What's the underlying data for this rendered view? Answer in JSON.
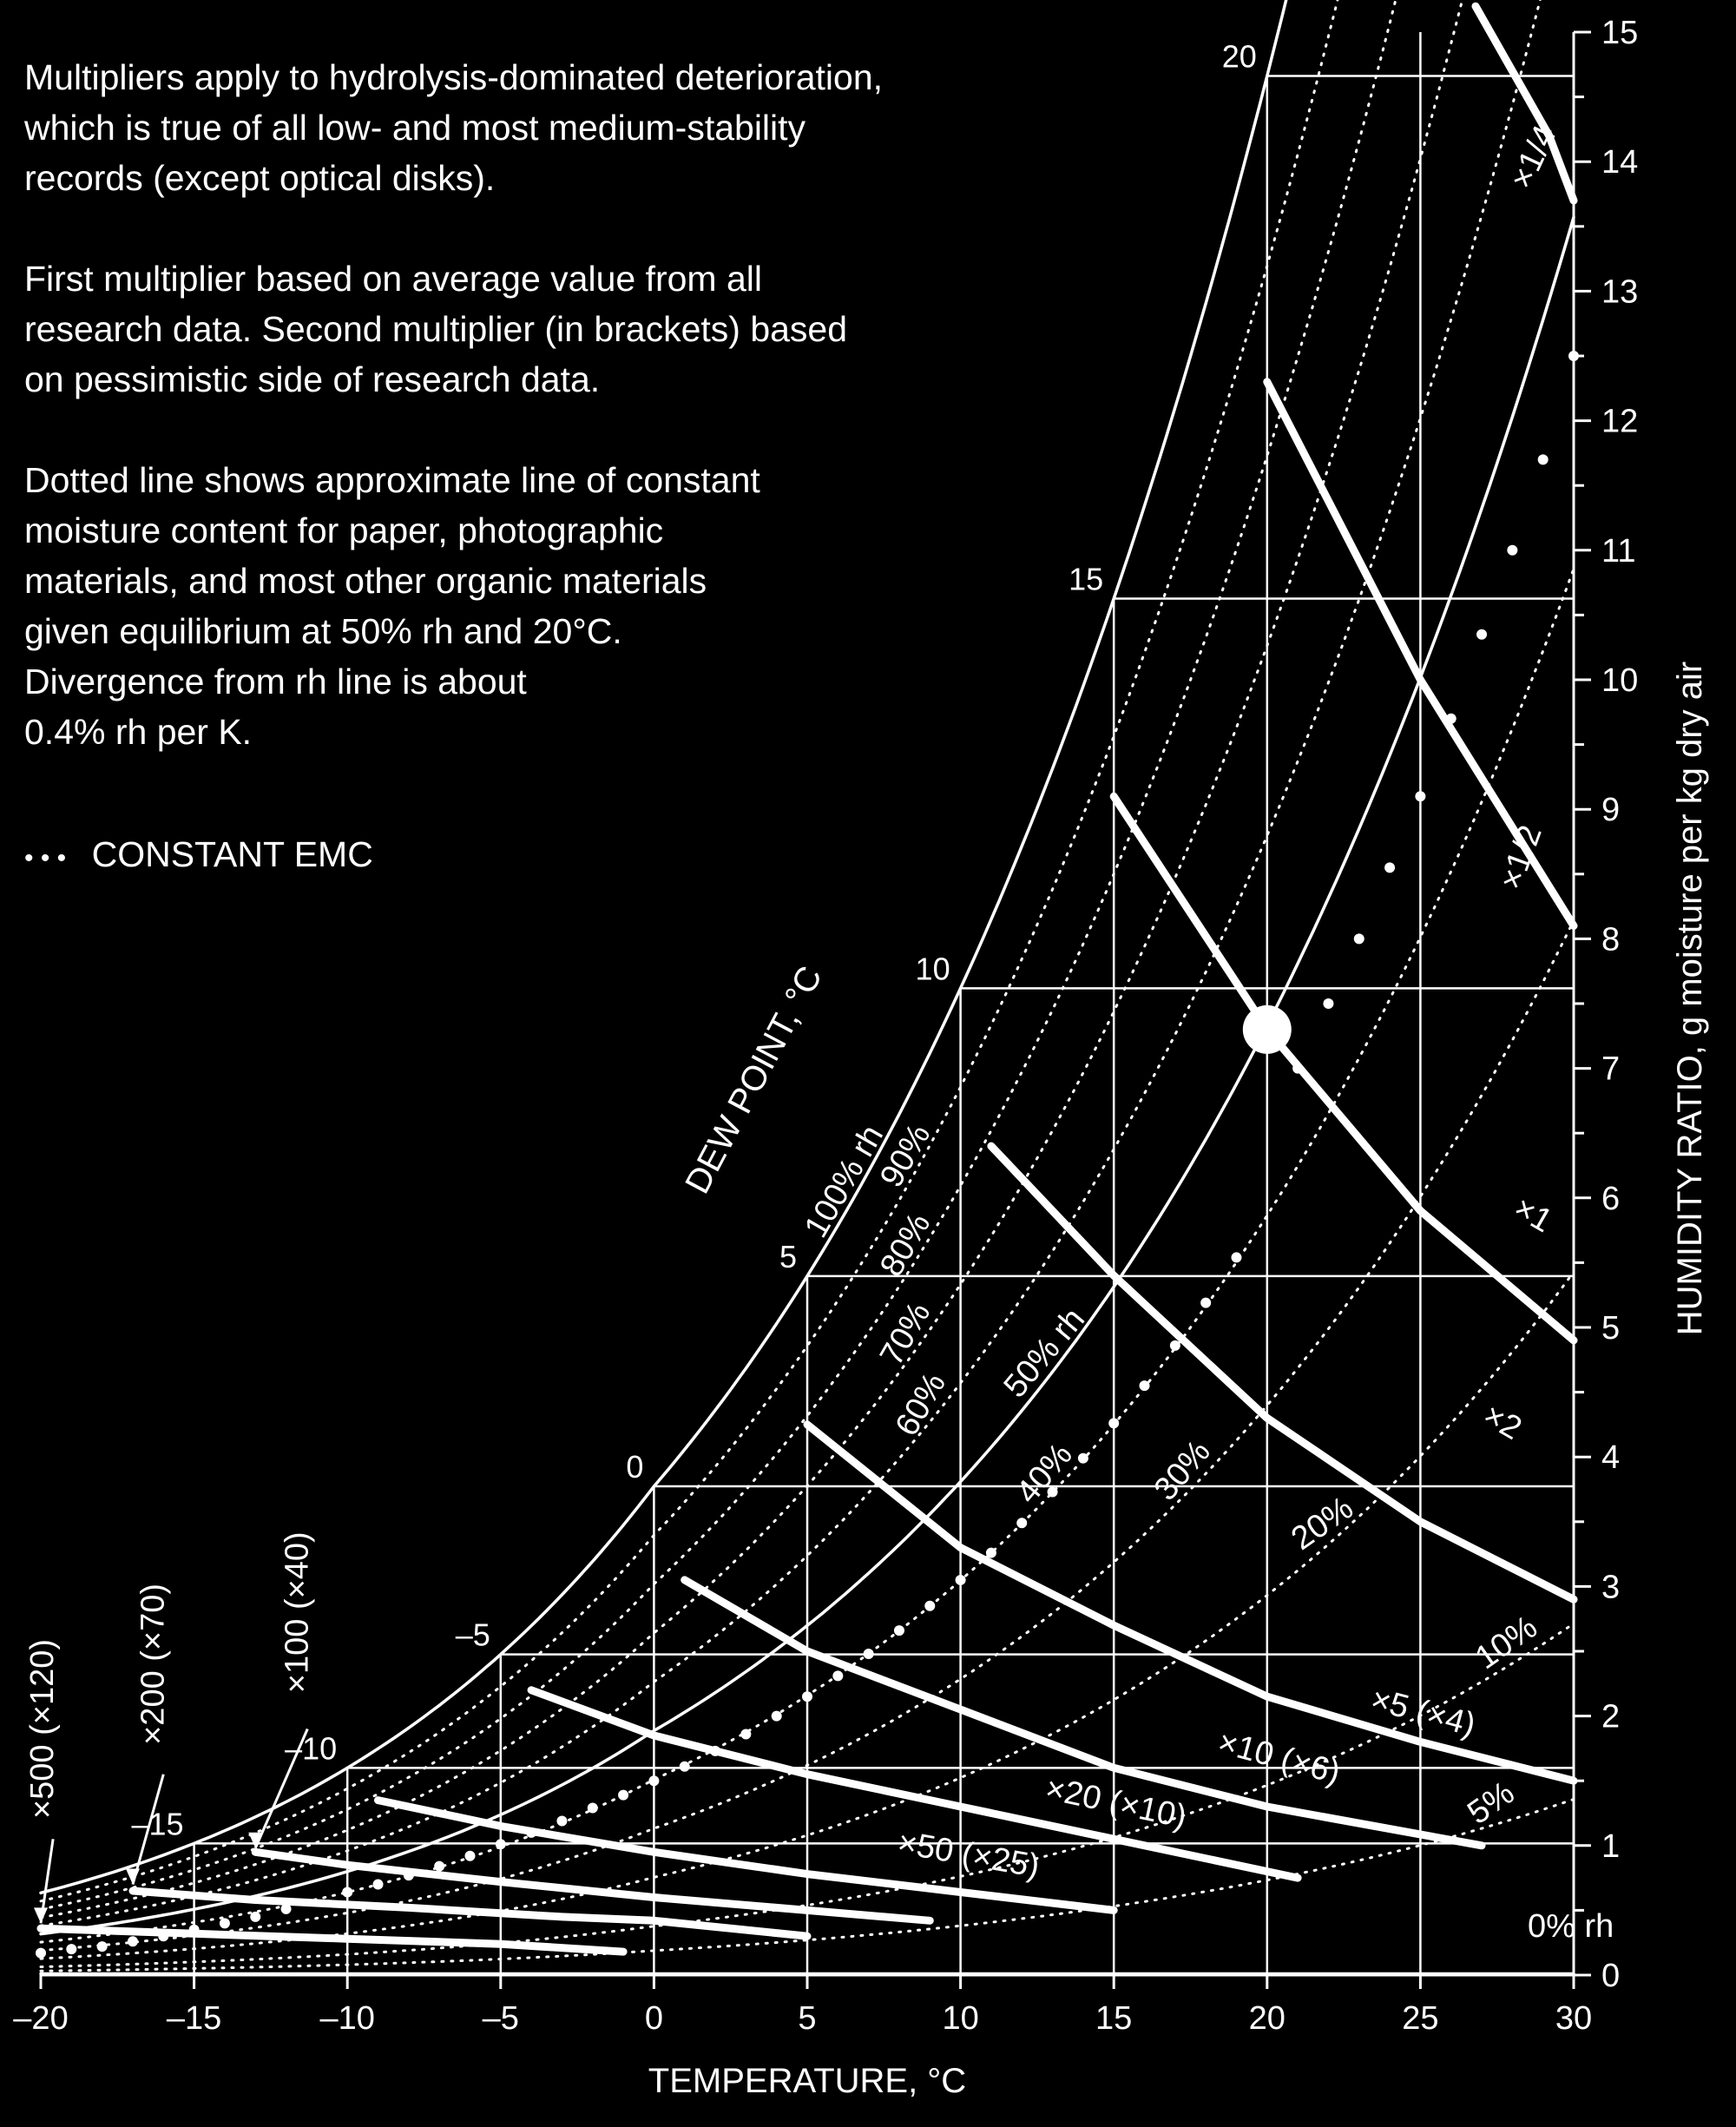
{
  "notes": [
    "Multipliers apply to hydrolysis-dominated deterioration,\nwhich is true of all low- and most medium-stability\nrecords (except optical disks).",
    "First multiplier based on average value from all\nresearch data. Second multiplier (in brackets) based\non pessimistic side of research data.",
    "Dotted line shows approximate line of constant\nmoisture content for paper, photographic\nmaterials, and most other organic materials\ngiven equilibrium at 50% rh and 20°C.\nDivergence from rh line is about\n0.4% rh per K."
  ],
  "legend": {
    "marker": "• • •",
    "label": "CONSTANT EMC"
  },
  "chart_data": {
    "type": "line",
    "xlabel": "TEMPERATURE, °C",
    "ylabel": "HUMIDITY RATIO, g moisture per kg dry air",
    "dewpoint_label": "DEW POINT, °C",
    "xlim": [
      -20,
      30
    ],
    "ylim": [
      0,
      15
    ],
    "x_ticks": [
      -20,
      -15,
      -10,
      -5,
      0,
      5,
      10,
      15,
      20,
      25,
      30
    ],
    "x_tick_labels": [
      "–20",
      "–15",
      "–10",
      "–5",
      "0",
      "5",
      "10",
      "15",
      "20",
      "25",
      "30"
    ],
    "y_ticks": [
      0,
      1,
      2,
      3,
      4,
      5,
      6,
      7,
      8,
      9,
      10,
      11,
      12,
      13,
      14,
      15
    ],
    "y_tick_labels": [
      "0",
      "1",
      "2",
      "3",
      "4",
      "5",
      "6",
      "7",
      "8",
      "9",
      "10",
      "11",
      "12",
      "13",
      "14",
      "15"
    ],
    "dewpoint_marks": [
      {
        "t": 20,
        "label": "20"
      },
      {
        "t": 15,
        "label": "15"
      },
      {
        "t": 10,
        "label": "10"
      },
      {
        "t": 5,
        "label": "5"
      },
      {
        "t": 0,
        "label": "0"
      },
      {
        "t": -5,
        "label": "–5"
      },
      {
        "t": -10,
        "label": "–10"
      },
      {
        "t": -15,
        "label": "–15"
      }
    ],
    "rh_curves": [
      {
        "rh": 100,
        "label": "100% rh"
      },
      {
        "rh": 90,
        "label": "90%"
      },
      {
        "rh": 80,
        "label": "80%"
      },
      {
        "rh": 70,
        "label": "70%"
      },
      {
        "rh": 60,
        "label": "60%"
      },
      {
        "rh": 50,
        "label": "50% rh"
      },
      {
        "rh": 40,
        "label": "40%"
      },
      {
        "rh": 30,
        "label": "30%"
      },
      {
        "rh": 20,
        "label": "20%"
      },
      {
        "rh": 10,
        "label": "10%"
      },
      {
        "rh": 5,
        "label": "5%"
      },
      {
        "rh": 0,
        "label": "0% rh"
      }
    ],
    "multiplier_curves": [
      {
        "label": "×1/4",
        "points": [
          [
            26.8,
            15.2
          ],
          [
            29.2,
            14.2
          ],
          [
            30,
            13.7
          ]
        ]
      },
      {
        "label": "×1/2",
        "points": [
          [
            20,
            12.3
          ],
          [
            25,
            10.0
          ],
          [
            30,
            8.1
          ]
        ]
      },
      {
        "label": "×1",
        "points": [
          [
            15,
            9.1
          ],
          [
            20,
            7.3
          ],
          [
            25,
            5.9
          ],
          [
            30,
            4.9
          ]
        ]
      },
      {
        "label": "×2",
        "points": [
          [
            11,
            6.4
          ],
          [
            15,
            5.4
          ],
          [
            20,
            4.3
          ],
          [
            25,
            3.5
          ],
          [
            30,
            2.9
          ]
        ]
      },
      {
        "label": "×5 (×4)",
        "points": [
          [
            5,
            4.25
          ],
          [
            10,
            3.3
          ],
          [
            15,
            2.7
          ],
          [
            20,
            2.15
          ],
          [
            25,
            1.8
          ],
          [
            30,
            1.5
          ]
        ]
      },
      {
        "label": "×10 (×6)",
        "points": [
          [
            1,
            3.05
          ],
          [
            5,
            2.5
          ],
          [
            10,
            2.05
          ],
          [
            15,
            1.6
          ],
          [
            20,
            1.3
          ],
          [
            27,
            1.0
          ]
        ]
      },
      {
        "label": "×20 (×10)",
        "points": [
          [
            -4,
            2.2
          ],
          [
            0,
            1.85
          ],
          [
            5,
            1.55
          ],
          [
            10,
            1.3
          ],
          [
            15,
            1.05
          ],
          [
            21,
            0.75
          ]
        ]
      },
      {
        "label": "×50 (×25)",
        "points": [
          [
            -9,
            1.35
          ],
          [
            -5,
            1.15
          ],
          [
            0,
            0.95
          ],
          [
            5,
            0.78
          ],
          [
            10,
            0.64
          ],
          [
            15,
            0.5
          ]
        ]
      },
      {
        "label": "×100 (×40)",
        "points": [
          [
            -13,
            0.95
          ],
          [
            -10,
            0.85
          ],
          [
            -5,
            0.72
          ],
          [
            0,
            0.6
          ],
          [
            5,
            0.5
          ],
          [
            9,
            0.42
          ]
        ]
      },
      {
        "label": "×200 (×70)",
        "points": [
          [
            -17,
            0.65
          ],
          [
            -13,
            0.58
          ],
          [
            -8,
            0.52
          ],
          [
            -3,
            0.45
          ],
          [
            0,
            0.42
          ],
          [
            5,
            0.3
          ]
        ]
      },
      {
        "label": "×500 (×120)",
        "points": [
          [
            -20,
            0.36
          ],
          [
            -15,
            0.32
          ],
          [
            -10,
            0.28
          ],
          [
            -5,
            0.24
          ],
          [
            -1,
            0.18
          ]
        ]
      }
    ],
    "emc_points": [
      [
        -20,
        0.17
      ],
      [
        -19,
        0.2
      ],
      [
        -18,
        0.22
      ],
      [
        -17,
        0.26
      ],
      [
        -16,
        0.3
      ],
      [
        -15,
        0.35
      ],
      [
        -14,
        0.4
      ],
      [
        -13,
        0.45
      ],
      [
        -12,
        0.51
      ],
      [
        -10,
        0.64
      ],
      [
        -9,
        0.7
      ],
      [
        -8,
        0.77
      ],
      [
        -7,
        0.84
      ],
      [
        -6,
        0.92
      ],
      [
        -5,
        1.01
      ],
      [
        -4,
        1.1
      ],
      [
        -3,
        1.19
      ],
      [
        -2,
        1.29
      ],
      [
        -1,
        1.39
      ],
      [
        0,
        1.5
      ],
      [
        1,
        1.61
      ],
      [
        2,
        1.73
      ],
      [
        3,
        1.86
      ],
      [
        4,
        2.0
      ],
      [
        5,
        2.15
      ],
      [
        6,
        2.31
      ],
      [
        7,
        2.48
      ],
      [
        8,
        2.66
      ],
      [
        9,
        2.85
      ],
      [
        10,
        3.05
      ],
      [
        11,
        3.26
      ],
      [
        12,
        3.49
      ],
      [
        13,
        3.73
      ],
      [
        14,
        3.99
      ],
      [
        15,
        4.26
      ],
      [
        16,
        4.55
      ],
      [
        17,
        4.86
      ],
      [
        18,
        5.19
      ],
      [
        19,
        5.54
      ],
      [
        20,
        7.3
      ],
      [
        21,
        7.0
      ],
      [
        22,
        7.5
      ],
      [
        23,
        8.0
      ],
      [
        24,
        8.55
      ],
      [
        25,
        9.1
      ],
      [
        26,
        9.7
      ],
      [
        27,
        10.35
      ],
      [
        28,
        11.0
      ],
      [
        29,
        11.7
      ],
      [
        30,
        12.5
      ]
    ],
    "reference_point": {
      "x": 20,
      "y": 7.3
    },
    "grid": true
  }
}
